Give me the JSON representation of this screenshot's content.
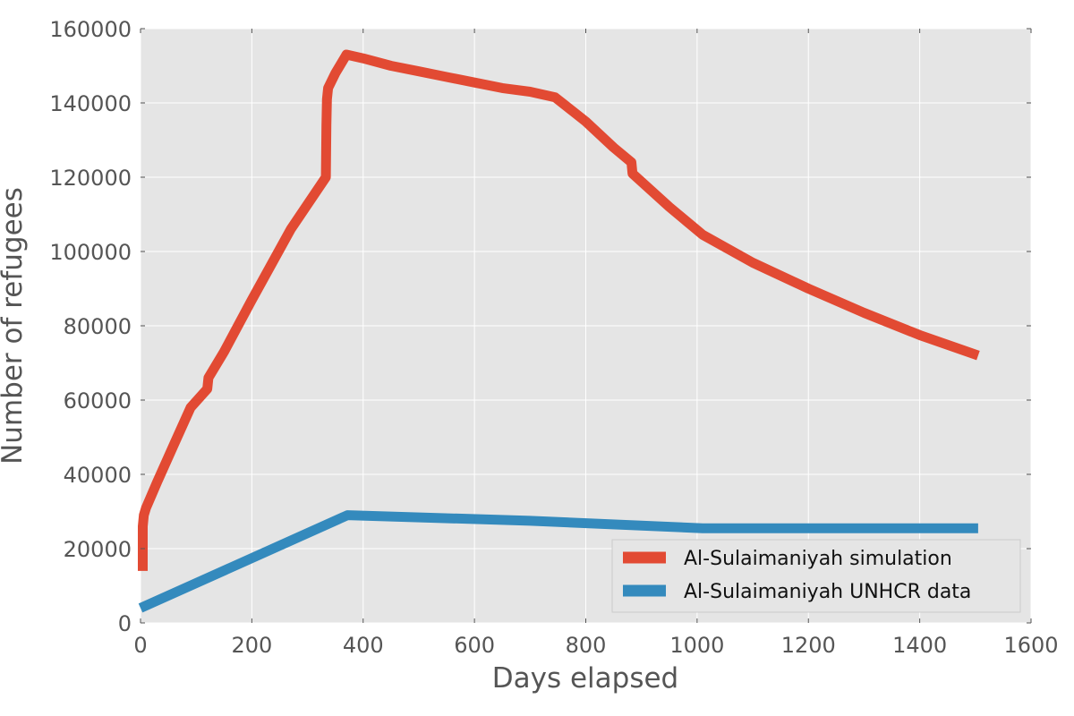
{
  "chart_data": {
    "type": "line",
    "title": "",
    "xlabel": "Days elapsed",
    "ylabel": "Number of refugees",
    "xlim": [
      0,
      1600
    ],
    "ylim": [
      0,
      160000
    ],
    "xticks": [
      0,
      200,
      400,
      600,
      800,
      1000,
      1200,
      1400,
      1600
    ],
    "yticks": [
      0,
      20000,
      40000,
      60000,
      80000,
      100000,
      120000,
      140000,
      160000
    ],
    "grid": true,
    "legend_position": "bottom-right",
    "series": [
      {
        "name": "Al-Sulaimaniyah simulation",
        "color": "#E24A33",
        "x": [
          4,
          4,
          6,
          10,
          30,
          60,
          90,
          120,
          122,
          150,
          200,
          270,
          333,
          334,
          335,
          337,
          350,
          370,
          400,
          450,
          500,
          550,
          600,
          650,
          700,
          745,
          800,
          850,
          882,
          884,
          950,
          1010,
          1100,
          1200,
          1300,
          1400,
          1505
        ],
        "y": [
          14000,
          26000,
          29000,
          31000,
          38000,
          48000,
          58000,
          63000,
          66000,
          73000,
          87000,
          106000,
          120000,
          134000,
          141000,
          144000,
          148000,
          153000,
          152000,
          150000,
          148500,
          147000,
          145500,
          144000,
          143000,
          141500,
          135000,
          128000,
          124000,
          121000,
          112000,
          104500,
          97000,
          90000,
          83500,
          77500,
          72000
        ]
      },
      {
        "name": "Al-Sulaimaniyah UNHCR data",
        "color": "#348ABD",
        "x": [
          0,
          372,
          700,
          1010,
          1505
        ],
        "y": [
          4000,
          29000,
          27500,
          25500,
          25500
        ]
      }
    ]
  }
}
